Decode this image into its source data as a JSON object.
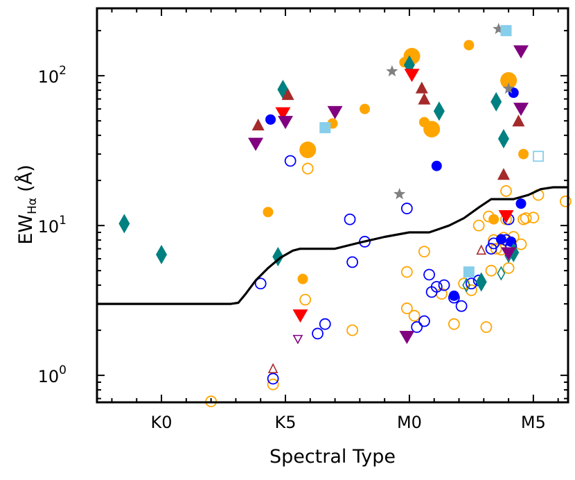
{
  "chart_data": {
    "type": "scatter",
    "title": "",
    "xlabel": "Spectral Type",
    "ylabel": "EW",
    "ylabel_subscript": "Hα",
    "ylabel_unit": "(Å)",
    "xlim": [
      -2.6,
      16.4
    ],
    "ylim_log10": [
      -0.18,
      2.45
    ],
    "y_scale": "log",
    "grid": false,
    "x_ticks": [
      {
        "value": 0,
        "label": "K0"
      },
      {
        "value": 5,
        "label": "K5"
      },
      {
        "value": 10,
        "label": "M0"
      },
      {
        "value": 15,
        "label": "M5"
      }
    ],
    "y_ticks": [
      {
        "value": 1,
        "base": "10",
        "exp": "0"
      },
      {
        "value": 10,
        "base": "10",
        "exp": "1"
      },
      {
        "value": 100,
        "base": "10",
        "exp": "2"
      }
    ],
    "threshold_curve": {
      "x": [
        -2.6,
        2.8,
        3.1,
        3.4,
        3.8,
        4.3,
        4.8,
        5.3,
        5.6,
        6.0,
        7.0,
        8.0,
        9.0,
        10.0,
        10.8,
        11.6,
        12.2,
        12.8,
        13.3,
        13.8,
        14.2,
        14.8,
        15.3,
        15.8,
        16.4
      ],
      "y": [
        3.0,
        3.0,
        3.05,
        3.5,
        4.3,
        5.2,
        6.1,
        6.8,
        7.0,
        7.0,
        7.0,
        7.7,
        8.4,
        9.0,
        9.0,
        10.0,
        11.2,
        13.2,
        15.0,
        15.0,
        15.0,
        16.0,
        17.5,
        18.0,
        18.0
      ]
    },
    "colors": {
      "orange": "#ffa500",
      "blue": "#0000ff",
      "teal": "#008080",
      "red": "#ff0000",
      "brown": "#a52a2a",
      "purple": "#800080",
      "gray": "#808080",
      "skyblue": "#87ceeb"
    },
    "series": [
      {
        "marker": "circle-filled-large",
        "color": "orange",
        "x": [
          5.9,
          10.9,
          10.1,
          14.0
        ],
        "y": [
          32,
          44,
          135,
          93
        ]
      },
      {
        "marker": "circle-filled",
        "color": "orange",
        "x": [
          4.3,
          5.7,
          6.9,
          8.2,
          9.8,
          10.6,
          12.4,
          13.4,
          14.6
        ],
        "y": [
          12.3,
          4.4,
          48,
          60,
          123,
          49,
          160,
          11,
          30
        ]
      },
      {
        "marker": "circle-open",
        "color": "orange",
        "x": [
          2.0,
          4.5,
          5.8,
          5.9,
          7.7,
          9.9,
          9.9,
          10.2,
          10.6,
          11.3,
          11.8,
          12.2,
          12.5,
          12.8,
          13.1,
          13.2,
          13.3,
          13.4,
          13.5,
          13.7,
          13.8,
          13.9,
          13.9,
          14.0,
          14.2,
          14.5,
          14.6,
          14.7,
          15.0,
          15.2,
          16.3
        ],
        "y": [
          0.67,
          0.87,
          3.2,
          24,
          2.0,
          4.9,
          2.8,
          2.5,
          6.7,
          3.5,
          2.2,
          4.1,
          3.7,
          10,
          2.1,
          11.5,
          5.0,
          8.0,
          7.0,
          6.9,
          8.3,
          11.0,
          17.0,
          5.2,
          8.4,
          7.5,
          11.0,
          11.2,
          11.3,
          16.0,
          14.5
        ],
        "sizes_note": "normal"
      },
      {
        "marker": "circle-filled",
        "color": "blue",
        "x": [
          4.4,
          11.1,
          11.8,
          13.7,
          14.1,
          14.2,
          14.5
        ],
        "y": [
          51,
          25,
          3.4,
          8.1,
          7.8,
          77,
          14
        ]
      },
      {
        "marker": "circle-open",
        "color": "blue",
        "x": [
          4.0,
          4.5,
          5.2,
          6.3,
          6.6,
          7.7,
          7.6,
          8.2,
          9.9,
          10.3,
          10.6,
          10.8,
          10.9,
          11.1,
          11.4,
          11.8,
          12.1,
          12.5,
          12.8,
          13.3,
          13.4,
          13.9,
          14.0,
          14.1
        ],
        "y": [
          4.1,
          0.95,
          27.0,
          1.9,
          2.2,
          5.7,
          11.0,
          7.8,
          13.0,
          2.1,
          2.3,
          4.7,
          3.6,
          3.9,
          4.0,
          3.3,
          2.9,
          4.1,
          4.3,
          7.0,
          7.6,
          8.0,
          11.0,
          7.3
        ]
      },
      {
        "marker": "diamond",
        "color": "teal",
        "x": [
          -1.5,
          0.0,
          4.7,
          4.9,
          10.0,
          11.2,
          12.9,
          13.5,
          13.8,
          14.2
        ],
        "y": [
          10.3,
          6.4,
          6.2,
          81,
          118,
          58,
          4.2,
          67,
          38,
          6.6
        ]
      },
      {
        "marker": "diamond-open",
        "color": "teal",
        "x": [
          14.0,
          13.7,
          12.3
        ],
        "y": [
          6.3,
          4.8,
          4.0
        ]
      },
      {
        "marker": "triangle-down",
        "color": "red",
        "x": [
          4.9,
          5.6,
          10.1,
          13.9
        ],
        "y": [
          56,
          2.5,
          101,
          11.5
        ]
      },
      {
        "marker": "triangle-up",
        "color": "brown",
        "x": [
          3.9,
          5.1,
          10.5,
          10.6,
          13.8,
          14.4
        ],
        "y": [
          47,
          75,
          83,
          70,
          22,
          50
        ]
      },
      {
        "marker": "triangle-up-open",
        "color": "brown",
        "x": [
          4.5,
          12.9
        ],
        "y": [
          1.1,
          6.8
        ]
      },
      {
        "marker": "triangle-down",
        "color": "purple",
        "x": [
          3.8,
          5.0,
          7.0,
          9.9,
          14.5,
          14.0,
          14.5
        ],
        "y": [
          35,
          49,
          57,
          1.8,
          145,
          6.5,
          60
        ]
      },
      {
        "marker": "triangle-down-open",
        "color": "purple",
        "x": [
          5.5
        ],
        "y": [
          1.75
        ]
      },
      {
        "marker": "star",
        "color": "gray",
        "x": [
          9.3,
          9.6,
          13.6,
          14.0
        ],
        "y": [
          107,
          16.2,
          205,
          82
        ]
      },
      {
        "marker": "square",
        "color": "skyblue",
        "x": [
          6.6,
          12.4,
          13.9
        ],
        "y": [
          45,
          4.9,
          200
        ]
      },
      {
        "marker": "square-open",
        "color": "skyblue",
        "x": [
          15.2
        ],
        "y": [
          29
        ]
      }
    ]
  }
}
